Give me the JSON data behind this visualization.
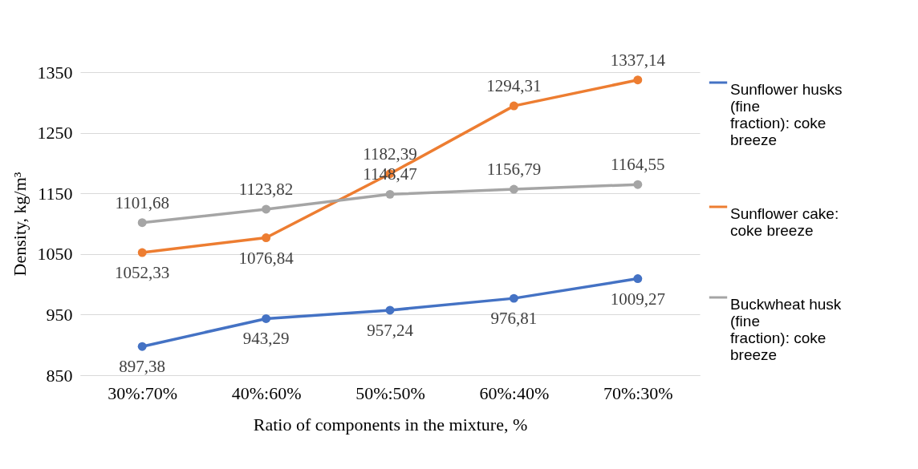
{
  "chart_data": {
    "type": "line",
    "xlabel": "Ratio of components in the mixture, %",
    "ylabel": "Density, kg/m³",
    "categories": [
      "30%:70%",
      "40%:60%",
      "50%:50%",
      "60%:40%",
      "70%:30%"
    ],
    "ylim": [
      850,
      1350
    ],
    "yticks": [
      850,
      950,
      1050,
      1150,
      1250,
      1350
    ],
    "grid": "y",
    "legend": "right",
    "marker": "circle",
    "line_style": "solid",
    "series": [
      {
        "name": "Sunflower husks (fine fraction): coke breeze",
        "color": "#4472c4",
        "values": [
          897.38,
          943.29,
          957.24,
          976.81,
          1009.27
        ],
        "value_labels": [
          "897,38",
          "943,29",
          "957,24",
          "976,81",
          "1009,27"
        ]
      },
      {
        "name": "Sunflower cake: coke breeze",
        "color": "#ed7d31",
        "values": [
          1052.33,
          1076.84,
          1182.39,
          1294.31,
          1337.14
        ],
        "value_labels": [
          "1052,33",
          "1076,84",
          "1182,39",
          "1294,31",
          "1337,14"
        ]
      },
      {
        "name": "Buckwheat husk (fine fraction): coke breeze",
        "color": "#a5a5a5",
        "values": [
          1101.68,
          1123.82,
          1148.47,
          1156.79,
          1164.55
        ],
        "value_labels": [
          "1101,68",
          "1123,82",
          "1148,47",
          "1156,79",
          "1164,55"
        ]
      }
    ]
  }
}
